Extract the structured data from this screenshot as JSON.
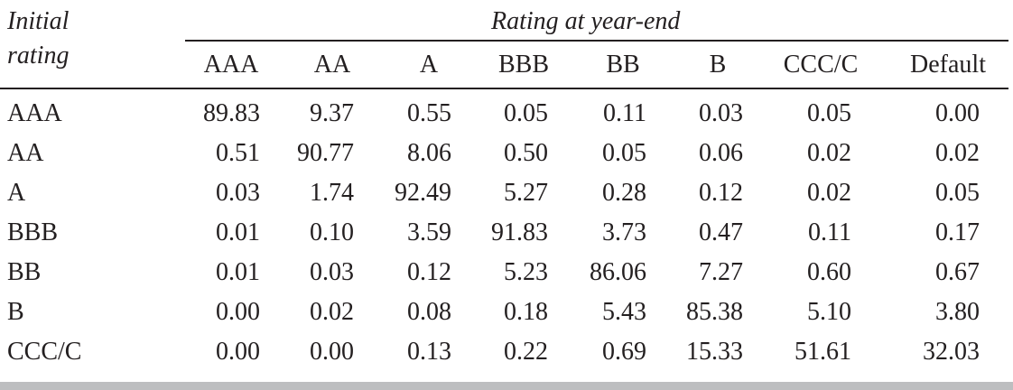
{
  "header": {
    "initial_line1": "Initial",
    "initial_line2": "rating",
    "group_title": "Rating at year-end"
  },
  "columns": [
    "AAA",
    "AA",
    "A",
    "BBB",
    "BB",
    "B",
    "CCC/C",
    "Default"
  ],
  "rows": [
    {
      "label": "AAA",
      "values": [
        "89.83",
        "9.37",
        "0.55",
        "0.05",
        "0.11",
        "0.03",
        "0.05",
        "0.00"
      ]
    },
    {
      "label": "AA",
      "values": [
        "0.51",
        "90.77",
        "8.06",
        "0.50",
        "0.05",
        "0.06",
        "0.02",
        "0.02"
      ]
    },
    {
      "label": "A",
      "values": [
        "0.03",
        "1.74",
        "92.49",
        "5.27",
        "0.28",
        "0.12",
        "0.02",
        "0.05"
      ]
    },
    {
      "label": "BBB",
      "values": [
        "0.01",
        "0.10",
        "3.59",
        "91.83",
        "3.73",
        "0.47",
        "0.11",
        "0.17"
      ]
    },
    {
      "label": "BB",
      "values": [
        "0.01",
        "0.03",
        "0.12",
        "5.23",
        "86.06",
        "7.27",
        "0.60",
        "0.67"
      ]
    },
    {
      "label": "B",
      "values": [
        "0.00",
        "0.02",
        "0.08",
        "0.18",
        "5.43",
        "85.38",
        "5.10",
        "3.80"
      ]
    },
    {
      "label": "CCC/C",
      "values": [
        "0.00",
        "0.00",
        "0.13",
        "0.22",
        "0.69",
        "15.33",
        "51.61",
        "32.03"
      ]
    }
  ]
}
